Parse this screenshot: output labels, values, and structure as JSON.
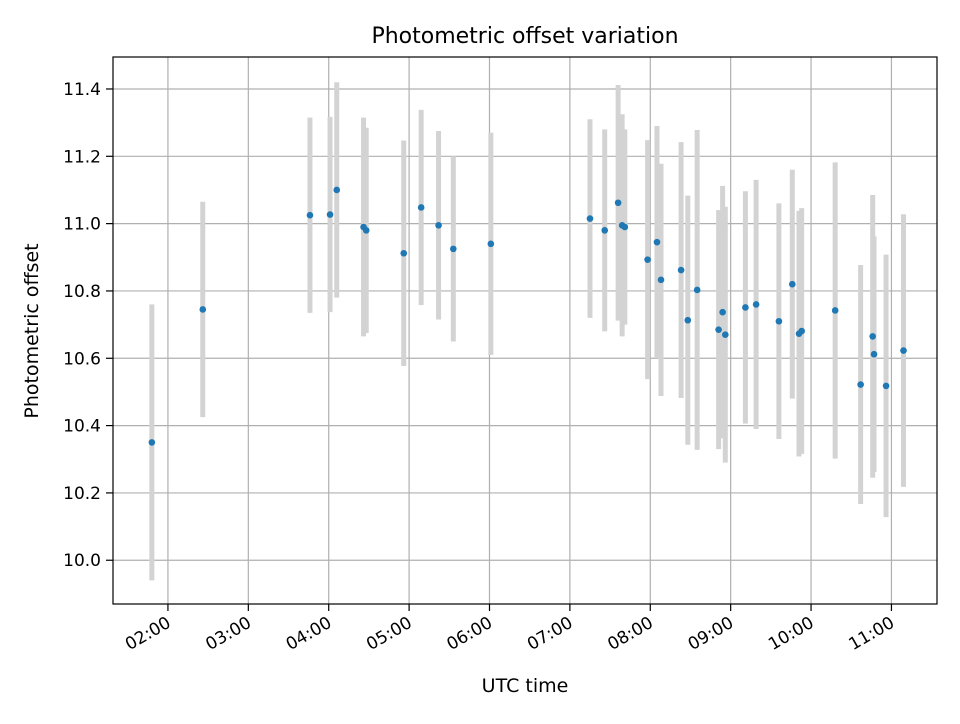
{
  "chart_data": {
    "type": "scatter",
    "title": "Photometric offset variation",
    "xlabel": "UTC time",
    "ylabel": "Photometric offset",
    "x_ticks": [
      "02:00",
      "03:00",
      "04:00",
      "05:00",
      "06:00",
      "07:00",
      "08:00",
      "09:00",
      "10:00",
      "11:00"
    ],
    "y_ticks": [
      "10.0",
      "10.2",
      "10.4",
      "10.6",
      "10.8",
      "11.0",
      "11.2",
      "11.4"
    ],
    "xlim": [
      "01:19",
      "11:34"
    ],
    "ylim": [
      9.87,
      11.495
    ],
    "grid": true,
    "legend": "none",
    "colors": {
      "point": "#1f77b4",
      "errorbar": "#d3d3d3",
      "grid": "#b0b0b0",
      "axis": "#000000"
    },
    "series": [
      {
        "x": [
          "01:48",
          "02:26",
          "03:46",
          "04:01",
          "04:06",
          "04:26",
          "04:28",
          "04:56",
          "05:09",
          "05:22",
          "05:33",
          "06:01",
          "07:15",
          "07:26",
          "07:36",
          "07:39",
          "07:41",
          "07:58",
          "08:05",
          "08:08",
          "08:23",
          "08:28",
          "08:35",
          "08:51",
          "08:54",
          "08:56",
          "09:11",
          "09:19",
          "09:36",
          "09:46",
          "09:51",
          "09:53",
          "10:18",
          "10:37",
          "10:46",
          "10:47",
          "10:56",
          "11:09"
        ],
        "y": [
          10.35,
          10.745,
          11.025,
          11.027,
          11.1,
          10.99,
          10.98,
          10.912,
          11.048,
          10.995,
          10.925,
          10.94,
          11.015,
          10.98,
          11.062,
          10.995,
          10.99,
          10.893,
          10.945,
          10.833,
          10.862,
          10.713,
          10.803,
          10.685,
          10.737,
          10.67,
          10.751,
          10.76,
          10.71,
          10.82,
          10.673,
          10.681,
          10.742,
          10.522,
          10.665,
          10.612,
          10.518,
          10.623
        ],
        "yerr": [
          0.41,
          0.32,
          0.29,
          0.29,
          0.32,
          0.325,
          0.305,
          0.335,
          0.29,
          0.28,
          0.275,
          0.33,
          0.295,
          0.3,
          0.35,
          0.33,
          0.29,
          0.355,
          0.345,
          0.345,
          0.38,
          0.37,
          0.475,
          0.355,
          0.375,
          0.38,
          0.345,
          0.37,
          0.35,
          0.34,
          0.365,
          0.365,
          0.44,
          0.355,
          0.42,
          0.35,
          0.39,
          0.405
        ]
      }
    ]
  }
}
